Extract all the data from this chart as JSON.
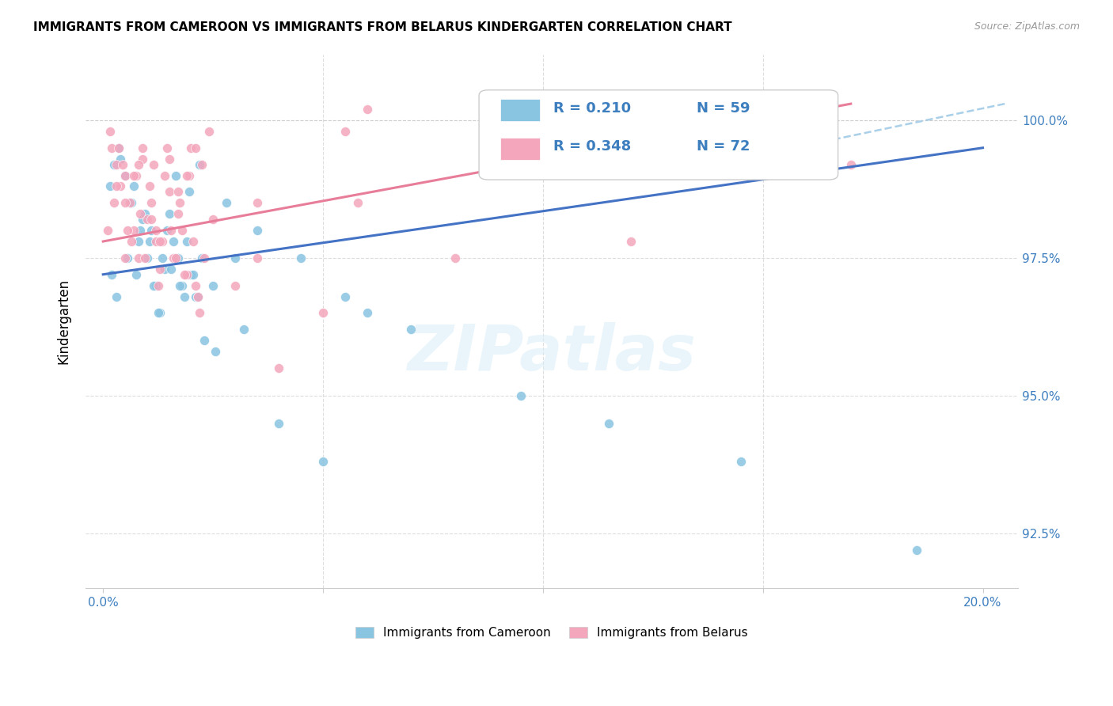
{
  "title": "IMMIGRANTS FROM CAMEROON VS IMMIGRANTS FROM BELARUS KINDERGARTEN CORRELATION CHART",
  "source": "Source: ZipAtlas.com",
  "ylabel": "Kindergarten",
  "ytick_labels": [
    "92.5%",
    "95.0%",
    "97.5%",
    "100.0%"
  ],
  "ytick_values": [
    92.5,
    95.0,
    97.5,
    100.0
  ],
  "xlim": [
    0.0,
    20.0
  ],
  "ylim": [
    91.5,
    101.2
  ],
  "legend_r1": "R = 0.210",
  "legend_n1": "N = 59",
  "legend_r2": "R = 0.348",
  "legend_n2": "N = 72",
  "color_blue": "#89C4E1",
  "color_pink": "#F4A6BC",
  "color_blue_line": "#4472C4",
  "color_pink_line": "#E87D9A",
  "color_blue_text": "#3d7ebf",
  "watermark": "ZIPatlas",
  "blue_x": [
    0.2,
    0.3,
    0.4,
    0.5,
    0.6,
    0.7,
    0.8,
    0.9,
    1.0,
    1.1,
    1.2,
    1.3,
    1.4,
    1.5,
    1.6,
    1.7,
    1.8,
    1.9,
    2.0,
    2.1,
    2.2,
    2.3,
    2.5,
    2.8,
    3.0,
    3.5,
    4.5,
    5.5,
    6.0,
    7.0,
    9.5,
    11.5,
    14.5,
    18.5,
    0.15,
    0.25,
    0.35,
    0.55,
    0.65,
    0.75,
    0.85,
    0.95,
    1.05,
    1.15,
    1.25,
    1.35,
    1.45,
    1.55,
    1.65,
    1.75,
    1.85,
    1.95,
    2.05,
    2.15,
    2.25,
    2.55,
    3.2,
    4.0,
    5.0
  ],
  "blue_y": [
    97.2,
    96.8,
    99.3,
    99.0,
    98.5,
    98.8,
    97.8,
    98.2,
    97.5,
    98.0,
    97.0,
    96.5,
    97.3,
    98.3,
    97.8,
    97.5,
    97.0,
    97.8,
    97.2,
    96.8,
    99.2,
    96.0,
    97.0,
    98.5,
    97.5,
    98.0,
    97.5,
    96.8,
    96.5,
    96.2,
    95.0,
    94.5,
    93.8,
    92.2,
    98.8,
    99.2,
    99.5,
    97.5,
    98.5,
    97.2,
    98.0,
    98.3,
    97.8,
    97.0,
    96.5,
    97.5,
    98.0,
    97.3,
    99.0,
    97.0,
    96.8,
    98.7,
    97.2,
    96.8,
    97.5,
    95.8,
    96.2,
    94.5,
    93.8
  ],
  "pink_x": [
    0.1,
    0.2,
    0.3,
    0.4,
    0.5,
    0.6,
    0.7,
    0.8,
    0.9,
    1.0,
    1.1,
    1.2,
    1.3,
    1.4,
    1.5,
    1.6,
    1.7,
    1.8,
    1.9,
    2.0,
    2.1,
    2.2,
    2.3,
    2.4,
    2.5,
    3.0,
    3.5,
    5.0,
    5.5,
    6.0,
    17.0,
    0.15,
    0.25,
    0.35,
    0.45,
    0.55,
    0.65,
    0.75,
    0.85,
    0.95,
    1.05,
    1.15,
    1.25,
    1.35,
    1.45,
    1.55,
    1.65,
    1.75,
    1.85,
    1.95,
    2.05,
    2.15,
    2.25,
    0.5,
    0.8,
    1.2,
    3.5,
    4.0,
    5.8,
    8.0,
    12.0,
    15.0,
    0.3,
    0.5,
    0.7,
    0.9,
    1.1,
    1.3,
    1.5,
    1.7,
    1.9,
    2.1
  ],
  "pink_y": [
    98.0,
    99.5,
    99.2,
    98.8,
    99.0,
    98.5,
    98.0,
    97.5,
    99.3,
    98.2,
    98.5,
    97.8,
    97.3,
    99.0,
    98.7,
    97.5,
    98.3,
    98.0,
    97.2,
    99.5,
    97.0,
    96.5,
    97.5,
    99.8,
    98.2,
    97.0,
    98.5,
    96.5,
    99.8,
    100.2,
    99.2,
    99.8,
    98.5,
    99.5,
    99.2,
    98.0,
    97.8,
    99.0,
    98.3,
    97.5,
    98.8,
    99.2,
    97.0,
    97.8,
    99.5,
    98.0,
    97.5,
    98.5,
    97.2,
    99.0,
    97.8,
    96.8,
    99.2,
    98.5,
    99.2,
    98.0,
    97.5,
    95.5,
    98.5,
    97.5,
    97.8,
    99.2,
    98.8,
    97.5,
    99.0,
    99.5,
    98.2,
    97.8,
    99.3,
    98.7,
    99.0,
    99.5
  ]
}
